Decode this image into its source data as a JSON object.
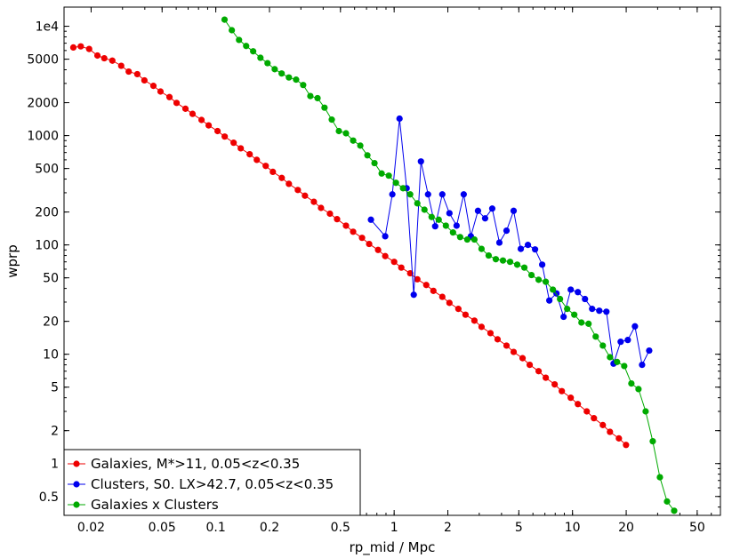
{
  "chart_data": {
    "type": "line",
    "xlabel": "rp_mid / Mpc",
    "ylabel": "wprp",
    "xscale": "log",
    "yscale": "log",
    "xlim": [
      0.0141,
      67.5
    ],
    "ylim": [
      0.336,
      14970
    ],
    "grid": false,
    "legend_position": "bottom-left",
    "x_ticks": [
      {
        "value": 0.02,
        "label": "0.02"
      },
      {
        "value": 0.05,
        "label": "0.05"
      },
      {
        "value": 0.1,
        "label": "0.1"
      },
      {
        "value": 0.2,
        "label": "0.2"
      },
      {
        "value": 0.5,
        "label": "0.5"
      },
      {
        "value": 1,
        "label": "1"
      },
      {
        "value": 2,
        "label": "2"
      },
      {
        "value": 5,
        "label": "5"
      },
      {
        "value": 10,
        "label": "10"
      },
      {
        "value": 20,
        "label": "20"
      },
      {
        "value": 50,
        "label": "50"
      }
    ],
    "y_ticks": [
      {
        "value": 0.5,
        "label": "0.5"
      },
      {
        "value": 1,
        "label": "1"
      },
      {
        "value": 2,
        "label": "2"
      },
      {
        "value": 5,
        "label": "5"
      },
      {
        "value": 10,
        "label": "10"
      },
      {
        "value": 20,
        "label": "20"
      },
      {
        "value": 50,
        "label": "50"
      },
      {
        "value": 100,
        "label": "100"
      },
      {
        "value": 200,
        "label": "200"
      },
      {
        "value": 500,
        "label": "500"
      },
      {
        "value": 1000,
        "label": "1000"
      },
      {
        "value": 2000,
        "label": "2000"
      },
      {
        "value": 5000,
        "label": "5000"
      },
      {
        "value": 10000,
        "label": "1e4"
      }
    ],
    "series": [
      {
        "name": "Galaxies, M*>11, 0.05<z<0.35",
        "color": "#ee0000",
        "points": [
          [
            0.0159,
            6400
          ],
          [
            0.0175,
            6550
          ],
          [
            0.0195,
            6200
          ],
          [
            0.0217,
            5400
          ],
          [
            0.0237,
            5100
          ],
          [
            0.0263,
            4850
          ],
          [
            0.0295,
            4350
          ],
          [
            0.0325,
            3850
          ],
          [
            0.0363,
            3650
          ],
          [
            0.0398,
            3200
          ],
          [
            0.0447,
            2850
          ],
          [
            0.049,
            2530
          ],
          [
            0.055,
            2250
          ],
          [
            0.0603,
            1990
          ],
          [
            0.0676,
            1760
          ],
          [
            0.0741,
            1580
          ],
          [
            0.0832,
            1390
          ],
          [
            0.0912,
            1240
          ],
          [
            0.1023,
            1100
          ],
          [
            0.1122,
            980
          ],
          [
            0.1259,
            860
          ],
          [
            0.138,
            765
          ],
          [
            0.1549,
            675
          ],
          [
            0.1698,
            600
          ],
          [
            0.1905,
            528
          ],
          [
            0.2089,
            466
          ],
          [
            0.2344,
            410
          ],
          [
            0.257,
            362
          ],
          [
            0.2884,
            318
          ],
          [
            0.3162,
            282
          ],
          [
            0.3548,
            248
          ],
          [
            0.389,
            218
          ],
          [
            0.4365,
            193
          ],
          [
            0.4786,
            172
          ],
          [
            0.537,
            150
          ],
          [
            0.5888,
            132
          ],
          [
            0.6607,
            116
          ],
          [
            0.7244,
            102
          ],
          [
            0.8128,
            90
          ],
          [
            0.8913,
            79
          ],
          [
            1.0,
            70
          ],
          [
            1.0965,
            62
          ],
          [
            1.2303,
            55
          ],
          [
            1.349,
            48.5
          ],
          [
            1.5136,
            43
          ],
          [
            1.6596,
            38
          ],
          [
            1.8621,
            33.5
          ],
          [
            2.0417,
            29.5
          ],
          [
            2.2909,
            26
          ],
          [
            2.5119,
            23
          ],
          [
            2.8184,
            20.3
          ],
          [
            3.0903,
            17.8
          ],
          [
            3.4674,
            15.6
          ],
          [
            3.8019,
            13.7
          ],
          [
            4.2658,
            12
          ],
          [
            4.6774,
            10.5
          ],
          [
            5.2481,
            9.2
          ],
          [
            5.7544,
            8
          ],
          [
            6.4565,
            7.0
          ],
          [
            7.0795,
            6.1
          ],
          [
            7.9433,
            5.3
          ],
          [
            8.7096,
            4.6
          ],
          [
            9.7724,
            4.0
          ],
          [
            10.715,
            3.5
          ],
          [
            12.023,
            3.0
          ],
          [
            13.183,
            2.6
          ],
          [
            14.791,
            2.25
          ],
          [
            16.218,
            1.95
          ],
          [
            18.197,
            1.7
          ],
          [
            19.953,
            1.48
          ]
        ]
      },
      {
        "name": "Clusters, S0. LX>42.7, 0.05<z<0.35",
        "color": "#0000ee",
        "points": [
          [
            0.741,
            170
          ],
          [
            0.891,
            120
          ],
          [
            0.977,
            290
          ],
          [
            1.072,
            1430
          ],
          [
            1.175,
            330
          ],
          [
            1.288,
            35
          ],
          [
            1.413,
            580
          ],
          [
            1.549,
            290
          ],
          [
            1.698,
            148
          ],
          [
            1.862,
            290
          ],
          [
            2.042,
            195
          ],
          [
            2.239,
            150
          ],
          [
            2.455,
            290
          ],
          [
            2.692,
            120
          ],
          [
            2.951,
            205
          ],
          [
            3.236,
            175
          ],
          [
            3.548,
            215
          ],
          [
            3.89,
            105
          ],
          [
            4.266,
            135
          ],
          [
            4.677,
            205
          ],
          [
            5.129,
            92
          ],
          [
            5.623,
            100
          ],
          [
            6.166,
            91
          ],
          [
            6.761,
            66
          ],
          [
            7.413,
            31
          ],
          [
            8.128,
            36
          ],
          [
            8.913,
            22
          ],
          [
            9.772,
            39
          ],
          [
            10.715,
            37
          ],
          [
            11.749,
            32
          ],
          [
            12.882,
            26
          ],
          [
            14.125,
            25
          ],
          [
            15.488,
            24.5
          ],
          [
            16.982,
            8.2
          ],
          [
            18.621,
            13
          ],
          [
            20.417,
            13.5
          ],
          [
            22.387,
            18
          ],
          [
            24.547,
            8
          ],
          [
            26.915,
            10.8
          ]
        ]
      },
      {
        "name": "Galaxies x Clusters",
        "color": "#00aa00",
        "points": [
          [
            0.112,
            11500
          ],
          [
            0.123,
            9200
          ],
          [
            0.135,
            7500
          ],
          [
            0.148,
            6600
          ],
          [
            0.162,
            5900
          ],
          [
            0.178,
            5150
          ],
          [
            0.195,
            4600
          ],
          [
            0.214,
            4050
          ],
          [
            0.234,
            3700
          ],
          [
            0.257,
            3400
          ],
          [
            0.282,
            3250
          ],
          [
            0.309,
            2900
          ],
          [
            0.339,
            2300
          ],
          [
            0.372,
            2200
          ],
          [
            0.407,
            1800
          ],
          [
            0.447,
            1400
          ],
          [
            0.49,
            1100
          ],
          [
            0.537,
            1050
          ],
          [
            0.589,
            900
          ],
          [
            0.646,
            810
          ],
          [
            0.708,
            660
          ],
          [
            0.776,
            560
          ],
          [
            0.851,
            450
          ],
          [
            0.933,
            430
          ],
          [
            1.023,
            370
          ],
          [
            1.122,
            330
          ],
          [
            1.23,
            290
          ],
          [
            1.349,
            240
          ],
          [
            1.479,
            210
          ],
          [
            1.622,
            180
          ],
          [
            1.778,
            170
          ],
          [
            1.95,
            150
          ],
          [
            2.138,
            130
          ],
          [
            2.344,
            118
          ],
          [
            2.57,
            112
          ],
          [
            2.818,
            112
          ],
          [
            3.09,
            92
          ],
          [
            3.388,
            80
          ],
          [
            3.715,
            74
          ],
          [
            4.074,
            72
          ],
          [
            4.467,
            70
          ],
          [
            4.898,
            66
          ],
          [
            5.37,
            62
          ],
          [
            5.888,
            53
          ],
          [
            6.457,
            48
          ],
          [
            7.079,
            46
          ],
          [
            7.762,
            39
          ],
          [
            8.511,
            32
          ],
          [
            9.333,
            26
          ],
          [
            10.23,
            23
          ],
          [
            11.22,
            19.5
          ],
          [
            12.3,
            19
          ],
          [
            13.49,
            14.5
          ],
          [
            14.79,
            12
          ],
          [
            16.22,
            9.4
          ],
          [
            17.78,
            8.5
          ],
          [
            19.5,
            7.8
          ],
          [
            21.38,
            5.4
          ],
          [
            23.44,
            4.8
          ],
          [
            25.7,
            3.0
          ],
          [
            28.18,
            1.6
          ],
          [
            30.9,
            0.75
          ],
          [
            33.88,
            0.45
          ],
          [
            37.15,
            0.37
          ]
        ]
      }
    ]
  }
}
